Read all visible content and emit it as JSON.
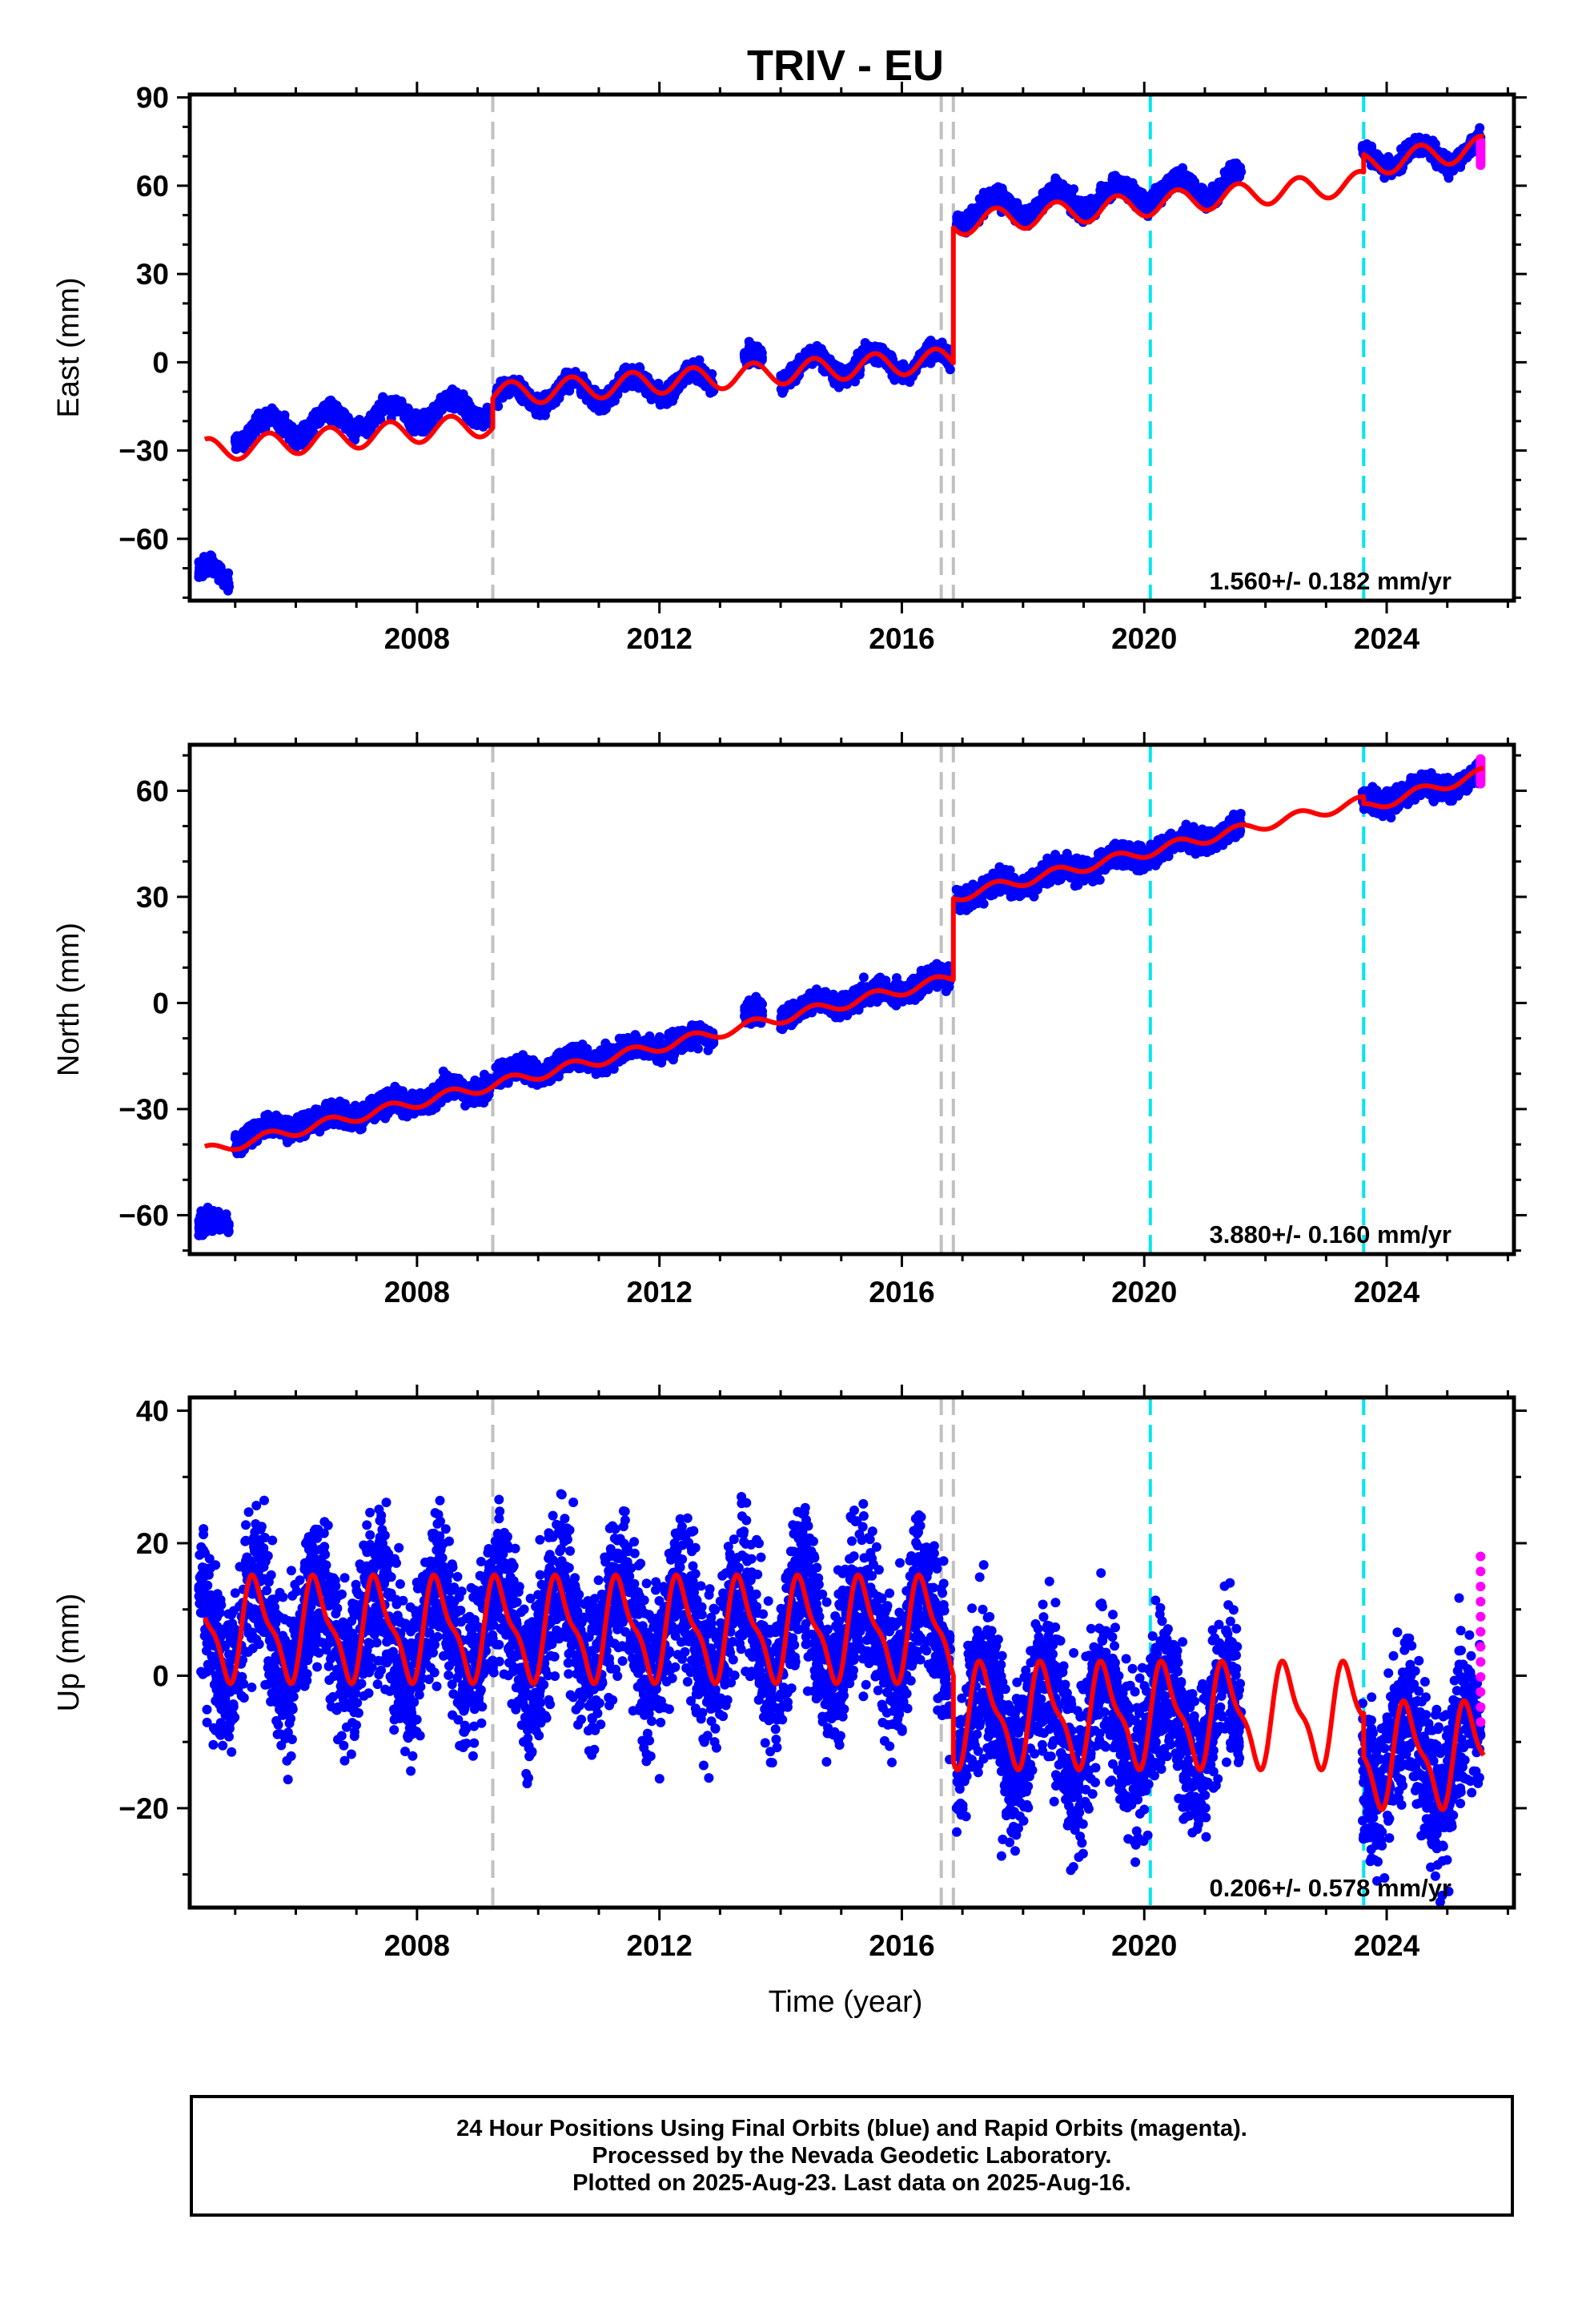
{
  "title": "TRIV - EU",
  "x_axis_label": "Time (year)",
  "footer": {
    "line1": "24 Hour Positions Using Final Orbits (blue) and Rapid Orbits (magenta).",
    "line2": "Processed by the Nevada Geodetic Laboratory.",
    "line3": "Plotted on 2025-Aug-23. Last data on 2025-Aug-16."
  },
  "colors": {
    "final_orbits": "#0000ff",
    "rapid_orbits": "#ff00ff",
    "model_fit": "#ff0000",
    "equipment_change": "#c0c0c0",
    "earthquake": "#00e5ee"
  },
  "chart_data": [
    {
      "type": "scatter",
      "component": "east",
      "ylabel": "East (mm)",
      "xlim": [
        2004.25,
        2026.1
      ],
      "ylim": [
        -81,
        91
      ],
      "x_ticks": [
        2008,
        2012,
        2016,
        2020,
        2024
      ],
      "y_ticks": [
        -60,
        -30,
        0,
        30,
        60,
        90
      ],
      "rate_text": "1.560+/- 0.182 mm/yr",
      "vertical_lines": {
        "gray_dashed": [
          2009.25,
          2016.65,
          2016.85
        ],
        "cyan_dashed": [
          2020.1,
          2023.62
        ]
      },
      "series": [
        {
          "color": "blue",
          "segments": [
            {
              "x_range": [
                2004.4,
                2004.9
              ],
              "y_at": [
                -73,
                -73
              ]
            },
            {
              "x_range": [
                2005.0,
                2009.2
              ],
              "y_at": [
                -23,
                -15
              ]
            },
            {
              "x_range": [
                2009.3,
                2012.9
              ],
              "y_at": [
                -12,
                -6
              ]
            },
            {
              "x_range": [
                2013.4,
                2013.7
              ],
              "y_at": [
                -1,
                -1
              ]
            },
            {
              "x_range": [
                2014.0,
                2016.8
              ],
              "y_at": [
                -2,
                1
              ]
            },
            {
              "x_range": [
                2016.9,
                2021.6
              ],
              "y_at": [
                51,
                61
              ]
            },
            {
              "x_range": [
                2023.6,
                2025.55
              ],
              "y_at": [
                69,
                72
              ]
            }
          ]
        },
        {
          "color": "magenta",
          "x": 2025.55,
          "y_range": [
            67,
            75
          ]
        },
        {
          "color": "red",
          "model": "piecewise_linear_plus_annual",
          "points": [
            [
              2004.5,
              -30
            ],
            [
              2009.25,
              -21
            ],
            [
              2009.25,
              -11
            ],
            [
              2016.85,
              1
            ],
            [
              2016.85,
              47
            ],
            [
              2023.62,
              61
            ],
            [
              2023.62,
              67
            ],
            [
              2025.6,
              73
            ]
          ],
          "annual_amplitude": 4
        }
      ]
    },
    {
      "type": "scatter",
      "component": "north",
      "ylabel": "North (mm)",
      "xlim": [
        2004.25,
        2026.1
      ],
      "ylim": [
        -71,
        73
      ],
      "x_ticks": [
        2008,
        2012,
        2016,
        2020,
        2024
      ],
      "y_ticks": [
        -60,
        -30,
        0,
        30,
        60
      ],
      "rate_text": "3.880+/- 0.160 mm/yr",
      "vertical_lines": {
        "gray_dashed": [
          2009.25,
          2016.65,
          2016.85
        ],
        "cyan_dashed": [
          2020.1,
          2023.62
        ]
      },
      "series": [
        {
          "color": "blue",
          "segments": [
            {
              "x_range": [
                2004.4,
                2004.9
              ],
              "y_at": [
                -64,
                -62
              ]
            },
            {
              "x_range": [
                2005.0,
                2009.2
              ],
              "y_at": [
                -38,
                -23
              ]
            },
            {
              "x_range": [
                2009.3,
                2012.9
              ],
              "y_at": [
                -21,
                -9
              ]
            },
            {
              "x_range": [
                2013.4,
                2013.7
              ],
              "y_at": [
                -4,
                -3
              ]
            },
            {
              "x_range": [
                2014.0,
                2016.8
              ],
              "y_at": [
                -3,
                7
              ]
            },
            {
              "x_range": [
                2016.9,
                2021.6
              ],
              "y_at": [
                30,
                49
              ]
            },
            {
              "x_range": [
                2023.6,
                2025.55
              ],
              "y_at": [
                56,
                64
              ]
            }
          ]
        },
        {
          "color": "magenta",
          "x": 2025.55,
          "y_range": [
            62,
            69
          ]
        },
        {
          "color": "red",
          "model": "piecewise_linear_plus_annual",
          "points": [
            [
              2004.5,
              -42
            ],
            [
              2016.85,
              7
            ],
            [
              2016.85,
              30
            ],
            [
              2023.62,
              57
            ],
            [
              2023.62,
              55
            ],
            [
              2025.6,
              65
            ]
          ],
          "annual_amplitude": 1.5
        }
      ]
    },
    {
      "type": "scatter",
      "component": "up",
      "ylabel": "Up (mm)",
      "xlim": [
        2004.25,
        2026.1
      ],
      "ylim": [
        -35,
        42
      ],
      "x_ticks": [
        2008,
        2012,
        2016,
        2020,
        2024
      ],
      "y_ticks": [
        -20,
        0,
        20,
        40
      ],
      "rate_text": "0.206+/- 0.578 mm/yr",
      "vertical_lines": {
        "gray_dashed": [
          2009.25,
          2016.65,
          2016.85
        ],
        "cyan_dashed": [
          2020.1,
          2023.62
        ]
      },
      "series": [
        {
          "color": "blue",
          "segments": [
            {
              "x_range": [
                2004.4,
                2016.8
              ],
              "y_at": [
                7,
                7
              ],
              "spread": 9
            },
            {
              "x_range": [
                2016.9,
                2021.6
              ],
              "y_at": [
                -7,
                -7
              ],
              "spread": 9
            },
            {
              "x_range": [
                2023.6,
                2025.55
              ],
              "y_at": [
                -12,
                -12
              ],
              "spread": 9
            }
          ]
        },
        {
          "color": "magenta",
          "x": 2025.55,
          "y_range": [
            -7,
            18
          ]
        },
        {
          "color": "red",
          "model": "piecewise_linear_plus_seasonal",
          "points": [
            [
              2004.5,
              7
            ],
            [
              2016.85,
              7
            ],
            [
              2016.85,
              -6
            ],
            [
              2023.62,
              -6
            ],
            [
              2023.62,
              -12
            ],
            [
              2025.6,
              -12
            ]
          ],
          "annual_amplitude": 7
        }
      ]
    }
  ]
}
